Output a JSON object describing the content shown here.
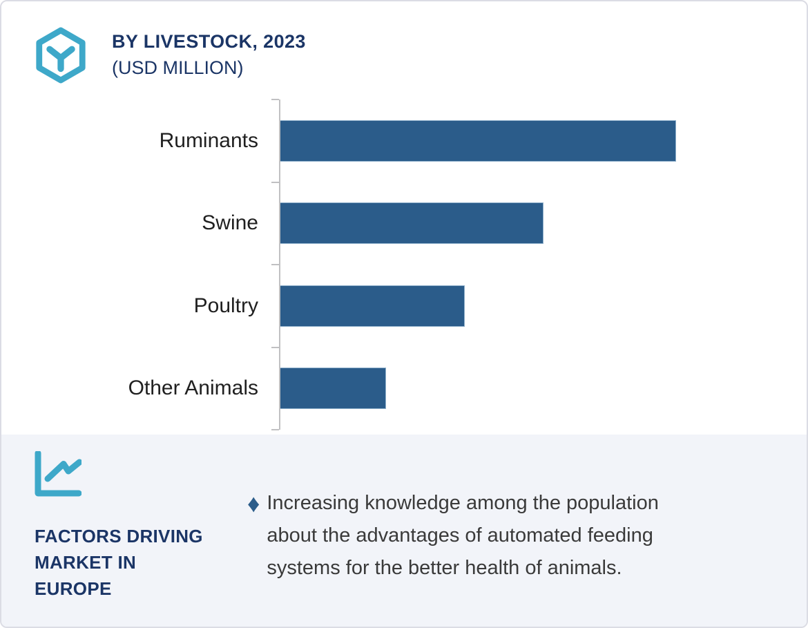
{
  "colors": {
    "teal_accent": "#3EA8C9",
    "navy_heading": "#1B3566",
    "bar_blue": "#2B5C8A",
    "panel_background": "#F2F4F9",
    "body_text": "#3A3A3A",
    "axis_gray": "#C0C0C2"
  },
  "header": {
    "logo_icon": "hexagon-cube-icon",
    "title_line1": "BY LIVESTOCK, 2023",
    "title_line2": "(USD MILLION)"
  },
  "chart_data": {
    "type": "bar",
    "orientation": "horizontal",
    "title": "BY LIVESTOCK, 2023 (USD MILLION)",
    "categories": [
      "Ruminants",
      "Swine",
      "Poultry",
      "Other Animals"
    ],
    "values": [
      100,
      66.5,
      46.6,
      26.7
    ],
    "value_unit": "relative bar length (max = 100); numeric axis labels not shown in image",
    "bar_color": "#2B5C8A",
    "xlabel": "",
    "ylabel": "",
    "grid": false,
    "legend": false,
    "value_axis_labeled": false
  },
  "bottom_panel": {
    "icon": "line-chart-icon",
    "heading_lines": [
      "FACTORS DRIVING",
      "MARKET IN",
      "EUROPE"
    ],
    "bullet": {
      "marker_icon": "diamond-bullet-icon",
      "marker_glyph": "♦",
      "lines": [
        "Increasing knowledge among the population",
        "about the advantages of automated feeding",
        "systems for the better health of animals."
      ]
    }
  }
}
